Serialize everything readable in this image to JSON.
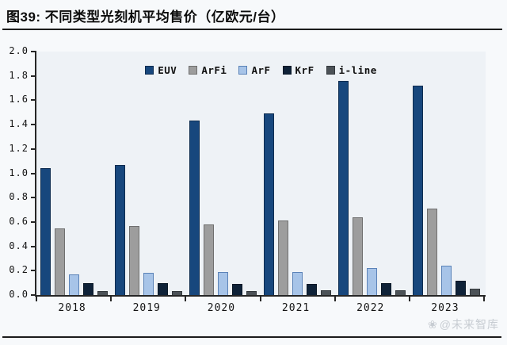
{
  "figure": {
    "title": "图39: 不同类型光刻机平均售价（亿欧元/台）",
    "watermark_icon": "❀",
    "watermark": "@未来智库"
  },
  "chart_data": {
    "type": "bar",
    "title": "不同类型光刻机平均售价（亿欧元/台）",
    "categories": [
      "2018",
      "2019",
      "2020",
      "2021",
      "2022",
      "2023"
    ],
    "series": [
      {
        "name": "EUV",
        "color": "#17477d",
        "border_color": "#0d2c50",
        "values": [
          1.04,
          1.07,
          1.43,
          1.49,
          1.76,
          1.72
        ]
      },
      {
        "name": "ArFi",
        "color": "#9d9d9d",
        "border_color": "#6f6f6f",
        "values": [
          0.55,
          0.57,
          0.58,
          0.61,
          0.64,
          0.71
        ]
      },
      {
        "name": "ArF",
        "color": "#a7c4e8",
        "border_color": "#5b83b8",
        "values": [
          0.17,
          0.18,
          0.19,
          0.19,
          0.22,
          0.24
        ]
      },
      {
        "name": "KrF",
        "color": "#0f2238",
        "border_color": "#0a1827",
        "values": [
          0.1,
          0.1,
          0.09,
          0.09,
          0.1,
          0.12
        ]
      },
      {
        "name": "i-line",
        "color": "#4c5257",
        "border_color": "#33383c",
        "values": [
          0.03,
          0.03,
          0.03,
          0.04,
          0.04,
          0.05
        ]
      }
    ],
    "ylim": [
      0.0,
      2.0
    ],
    "ytick_step": 0.2,
    "yticks": [
      "2.0",
      "1.8",
      "1.6",
      "1.4",
      "1.2",
      "1.0",
      "0.8",
      "0.6",
      "0.4",
      "0.2",
      "0.0"
    ],
    "xlabel": "",
    "ylabel": "",
    "legend_position": "top-center",
    "grid": false,
    "axis_color": "#262626",
    "plot_background": "#eef2f6"
  }
}
